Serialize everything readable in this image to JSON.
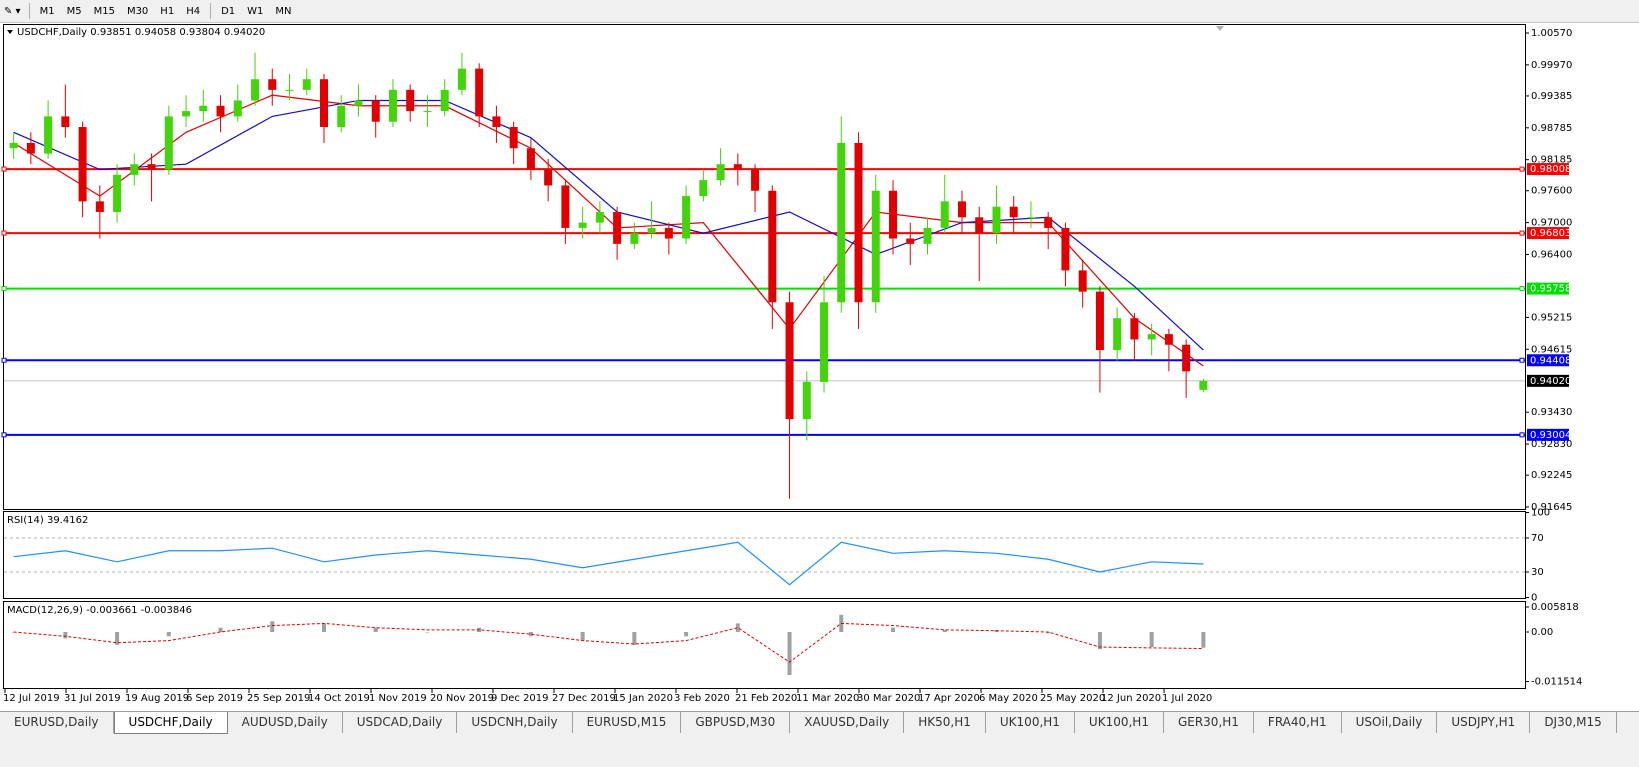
{
  "toolbar": {
    "timeframes": [
      "M1",
      "M5",
      "M15",
      "M30",
      "H1",
      "H4",
      "D1",
      "W1",
      "MN"
    ]
  },
  "chart": {
    "type": "candlestick",
    "header": "USDCHF,Daily  0.93851 0.94058 0.93804 0.94020",
    "xlim": [
      -0.5,
      69.5
    ],
    "ylim": [
      0.91626,
      1.00721
    ],
    "yticks": [
      {
        "value": 1.0057,
        "label": "1.00570"
      },
      {
        "value": 0.9997,
        "label": "0.99970"
      },
      0.99385,
      0.98785,
      0.98185,
      {
        "value": 0.976,
        "label": "0.97600"
      },
      {
        "value": 0.97,
        "label": "0.97000"
      },
      {
        "value": 0.964,
        "label": "0.96400"
      },
      0.95215,
      0.94615,
      {
        "value": 0.9343,
        "label": "0.93430"
      },
      {
        "value": 0.9283,
        "label": "0.92830"
      },
      0.92245,
      0.91645
    ],
    "up_color": "#44d40c",
    "down_color": "#e00000",
    "candles": [
      [
        0.984,
        0.987,
        0.982,
        0.985
      ],
      [
        0.985,
        0.987,
        0.981,
        0.983
      ],
      [
        0.983,
        0.993,
        0.982,
        0.99
      ],
      [
        0.99,
        0.996,
        0.986,
        0.988
      ],
      [
        0.988,
        0.989,
        0.971,
        0.974
      ],
      [
        0.974,
        0.977,
        0.967,
        0.972
      ],
      [
        0.972,
        0.981,
        0.97,
        0.979
      ],
      [
        0.979,
        0.983,
        0.977,
        0.981
      ],
      [
        0.981,
        0.983,
        0.974,
        0.98
      ],
      [
        0.98,
        0.992,
        0.979,
        0.99
      ],
      [
        0.99,
        0.994,
        0.988,
        0.991
      ],
      [
        0.991,
        0.995,
        0.989,
        0.992
      ],
      [
        0.992,
        0.994,
        0.987,
        0.99
      ],
      [
        0.99,
        0.996,
        0.989,
        0.993
      ],
      [
        0.993,
        1.002,
        0.992,
        0.997
      ],
      [
        0.997,
        0.999,
        0.992,
        0.995
      ],
      [
        0.995,
        0.998,
        0.993,
        0.995
      ],
      [
        0.995,
        0.999,
        0.994,
        0.997
      ],
      [
        0.997,
        0.998,
        0.985,
        0.988
      ],
      [
        0.988,
        0.994,
        0.987,
        0.992
      ],
      [
        0.992,
        0.996,
        0.99,
        0.993
      ],
      [
        0.993,
        0.994,
        0.986,
        0.989
      ],
      [
        0.989,
        0.997,
        0.988,
        0.995
      ],
      [
        0.995,
        0.996,
        0.989,
        0.991
      ],
      [
        0.991,
        0.994,
        0.988,
        0.991
      ],
      [
        0.991,
        0.997,
        0.99,
        0.995
      ],
      [
        0.995,
        1.002,
        0.994,
        0.999
      ],
      [
        0.999,
        1.0,
        0.988,
        0.99
      ],
      [
        0.99,
        0.992,
        0.985,
        0.988
      ],
      [
        0.988,
        0.989,
        0.981,
        0.984
      ],
      [
        0.984,
        0.986,
        0.978,
        0.98
      ],
      [
        0.98,
        0.982,
        0.974,
        0.977
      ],
      [
        0.977,
        0.978,
        0.966,
        0.969
      ],
      [
        0.969,
        0.973,
        0.967,
        0.97
      ],
      [
        0.97,
        0.974,
        0.968,
        0.972
      ],
      [
        0.972,
        0.973,
        0.963,
        0.966
      ],
      [
        0.966,
        0.97,
        0.965,
        0.968
      ],
      [
        0.968,
        0.974,
        0.967,
        0.969
      ],
      [
        0.969,
        0.97,
        0.964,
        0.967
      ],
      [
        0.967,
        0.977,
        0.966,
        0.975
      ],
      [
        0.975,
        0.98,
        0.974,
        0.978
      ],
      [
        0.978,
        0.984,
        0.977,
        0.981
      ],
      [
        0.981,
        0.983,
        0.977,
        0.98
      ],
      [
        0.98,
        0.981,
        0.972,
        0.976
      ],
      [
        0.976,
        0.977,
        0.95,
        0.955
      ],
      [
        0.955,
        0.957,
        0.918,
        0.933
      ],
      [
        0.933,
        0.942,
        0.929,
        0.94
      ],
      [
        0.94,
        0.96,
        0.938,
        0.955
      ],
      [
        0.955,
        0.99,
        0.953,
        0.985
      ],
      [
        0.985,
        0.987,
        0.95,
        0.955
      ],
      [
        0.955,
        0.979,
        0.953,
        0.976
      ],
      [
        0.976,
        0.978,
        0.964,
        0.967
      ],
      [
        0.967,
        0.97,
        0.962,
        0.966
      ],
      [
        0.966,
        0.971,
        0.964,
        0.969
      ],
      [
        0.969,
        0.979,
        0.968,
        0.974
      ],
      [
        0.974,
        0.976,
        0.968,
        0.971
      ],
      [
        0.971,
        0.973,
        0.959,
        0.968
      ],
      [
        0.968,
        0.977,
        0.966,
        0.973
      ],
      [
        0.973,
        0.975,
        0.968,
        0.971
      ],
      [
        0.971,
        0.974,
        0.969,
        0.971
      ],
      [
        0.971,
        0.972,
        0.965,
        0.969
      ],
      [
        0.969,
        0.97,
        0.958,
        0.961
      ],
      [
        0.961,
        0.963,
        0.954,
        0.957
      ],
      [
        0.957,
        0.958,
        0.938,
        0.946
      ],
      [
        0.946,
        0.954,
        0.944,
        0.952
      ],
      [
        0.952,
        0.953,
        0.944,
        0.948
      ],
      [
        0.948,
        0.951,
        0.945,
        0.949
      ],
      [
        0.949,
        0.95,
        0.942,
        0.947
      ],
      [
        0.947,
        0.948,
        0.937,
        0.942
      ],
      [
        0.93851,
        0.94058,
        0.93804,
        0.9402
      ]
    ],
    "moving_averages": [
      {
        "color": "#e00000",
        "x": [
          0,
          5,
          10,
          15,
          20,
          25,
          30,
          35,
          40,
          45,
          50,
          55,
          60,
          65,
          69
        ],
        "values": [
          0.985,
          0.975,
          0.987,
          0.994,
          0.992,
          0.992,
          0.984,
          0.969,
          0.97,
          0.95,
          0.972,
          0.97,
          0.97,
          0.952,
          0.943
        ]
      },
      {
        "color": "#1010c0",
        "x": [
          0,
          5,
          10,
          15,
          20,
          25,
          30,
          35,
          40,
          45,
          50,
          55,
          60,
          65,
          69
        ],
        "values": [
          0.987,
          0.98,
          0.981,
          0.99,
          0.993,
          0.993,
          0.986,
          0.972,
          0.968,
          0.972,
          0.964,
          0.97,
          0.971,
          0.958,
          0.946
        ]
      }
    ],
    "levels": [
      {
        "value": 0.98008,
        "color": "#ff0000"
      },
      {
        "value": 0.96803,
        "color": "#ff0000"
      },
      {
        "value": 0.95758,
        "color": "#00e000"
      },
      {
        "value": 0.94408,
        "color": "#0000ff"
      },
      {
        "value": 0.93004,
        "color": "#0000ff"
      }
    ],
    "current_price": {
      "value": 0.9402,
      "label": "0.94020"
    },
    "dates": [
      "12 Jul 2019",
      "31 Jul 2019",
      "19 Aug 2019",
      "6 Sep 2019",
      "25 Sep 2019",
      "14 Oct 2019",
      "1 Nov 2019",
      "20 Nov 2019",
      "9 Dec 2019",
      "27 Dec 2019",
      "15 Jan 2020",
      "3 Feb 2020",
      "21 Feb 2020",
      "11 Mar 2020",
      "30 Mar 2020",
      "17 Apr 2020",
      "6 May 2020",
      "25 May 2020",
      "12 Jun 2020",
      "1 Jul 2020"
    ]
  },
  "rsi": {
    "type": "line",
    "title": "RSI(14) 39.4162",
    "ylim": [
      0,
      100
    ],
    "yticks": [
      100,
      70,
      30,
      0
    ],
    "levels": [
      70,
      30
    ],
    "color": "#1e90ff",
    "x": [
      0,
      3,
      6,
      9,
      12,
      15,
      18,
      21,
      24,
      27,
      30,
      33,
      36,
      39,
      42,
      45,
      48,
      51,
      54,
      57,
      60,
      63,
      66,
      69
    ],
    "values": [
      48,
      55,
      42,
      55,
      55,
      58,
      42,
      50,
      55,
      50,
      45,
      35,
      45,
      55,
      65,
      15,
      65,
      52,
      55,
      52,
      45,
      30,
      42,
      39.4162
    ]
  },
  "macd": {
    "type": "histogram",
    "title": "MACD(12,26,9) -0.003661 -0.003846",
    "ylim": [
      -0.01303,
      0.00698
    ],
    "yticks": [
      0.005818,
      {
        "value": 0,
        "label": "0.00"
      },
      -0.011514
    ],
    "hist_color": "#a0a0a0",
    "signal_color": "#e00000",
    "x": [
      0,
      3,
      6,
      9,
      12,
      15,
      18,
      21,
      24,
      27,
      30,
      33,
      36,
      39,
      42,
      45,
      48,
      51,
      54,
      57,
      60,
      63,
      66,
      69
    ],
    "histogram": [
      0,
      -0.0015,
      -0.003,
      -0.001,
      0.001,
      0.0025,
      0.002,
      0.001,
      0,
      0.001,
      -0.001,
      -0.002,
      -0.003,
      -0.001,
      0.002,
      -0.01,
      0.004,
      0.001,
      0.0005,
      0.0005,
      -0.0003,
      -0.004,
      -0.0035,
      -0.003661
    ],
    "signal": [
      0,
      -0.001,
      -0.0025,
      -0.002,
      0,
      0.0015,
      0.002,
      0.001,
      0.0005,
      0.0005,
      -0.0005,
      -0.002,
      -0.0028,
      -0.002,
      0.001,
      -0.007,
      0.002,
      0.0015,
      0.0005,
      0.0003,
      0,
      -0.0035,
      -0.0037,
      -0.003846
    ]
  },
  "tabs": [
    "EURUSD,Daily",
    "USDCHF,Daily",
    "AUDUSD,Daily",
    "USDCAD,Daily",
    "USDCNH,Daily",
    "EURUSD,M15",
    "GBPUSD,M30",
    "XAUUSD,Daily",
    "HK50,H1",
    "UK100,H1",
    "UK100,H1",
    "GER30,H1",
    "FRA40,H1",
    "USOil,Daily",
    "USDJPY,H1",
    "DJ30,M15"
  ],
  "active_tab": 1
}
